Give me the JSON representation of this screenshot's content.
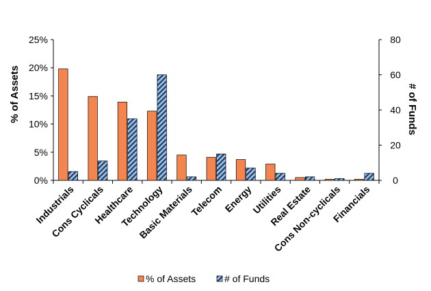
{
  "chart_data": {
    "type": "bar",
    "categories": [
      "Industrials",
      "Cons Cyclicals",
      "Healthcare",
      "Technology",
      "Basic Materials",
      "Telecom",
      "Energy",
      "Utilities",
      "Real Estate",
      "Cons Non-cyclicals",
      "Financials"
    ],
    "series": [
      {
        "name": "% of Assets",
        "axis": "left",
        "color": "#f4854f",
        "values": [
          19.8,
          14.9,
          13.9,
          12.3,
          4.5,
          4.1,
          3.7,
          2.9,
          0.5,
          0.2,
          0.2
        ]
      },
      {
        "name": "# of Funds",
        "axis": "right",
        "color": "#4f81bd",
        "pattern": "diagonal-hatch",
        "values": [
          5,
          11,
          35,
          60,
          2,
          15,
          7,
          4,
          2,
          1,
          4
        ]
      }
    ],
    "ylabel": "% of Assets",
    "ylabel_right": "# of Funds",
    "ylim": [
      0,
      25
    ],
    "ylim_right": [
      0,
      80
    ],
    "yticks": [
      "0%",
      "5%",
      "10%",
      "15%",
      "20%",
      "25%"
    ],
    "yticks_right": [
      "0",
      "20",
      "40",
      "60",
      "80"
    ],
    "grid": false,
    "legend": "bottom"
  }
}
